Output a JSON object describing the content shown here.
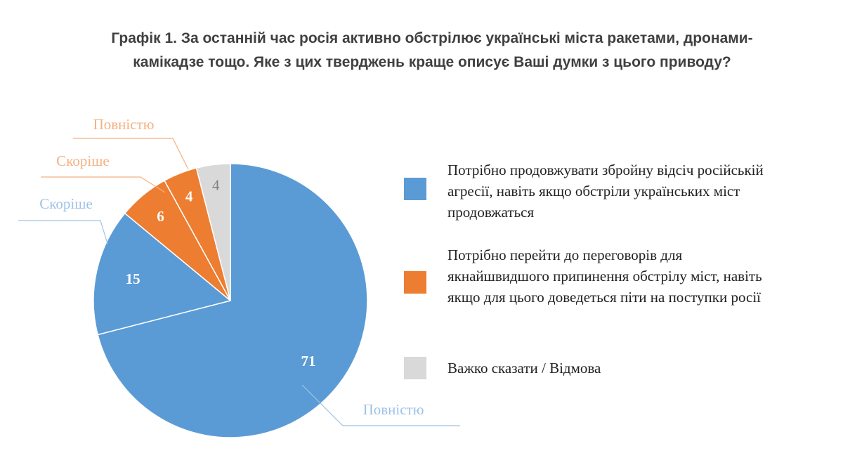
{
  "chart_data": {
    "type": "pie",
    "title_lines": [
      "Графік 1. За останній час росія активно обстрілює українські міста ракетами, дронами-",
      "камікадзе тощо. Яке з цих тверджень краще описує Ваші думки з цього приводу?"
    ],
    "slices": [
      {
        "value": 71,
        "label": "71",
        "callout": "Повністю",
        "group": 0
      },
      {
        "value": 15,
        "label": "15",
        "callout": "Скоріше",
        "group": 0
      },
      {
        "value": 6,
        "label": "6",
        "callout": "Скоріше",
        "group": 1
      },
      {
        "value": 4,
        "label": "4",
        "callout": "Повністю",
        "group": 1
      },
      {
        "value": 4,
        "label": "4",
        "callout": "",
        "group": 2
      }
    ],
    "legend": [
      {
        "text": "Потрібно продовжувати збройну відсіч російській агресії, навіть якщо обстріли українських міст продовжаться",
        "color": "#5b9bd5"
      },
      {
        "text": "Потрібно перейти до переговорів для якнайшвидшого припинення обстрілу міст, навіть якщо для цього доведеться піти на поступки росії",
        "color": "#ed7d31"
      },
      {
        "text": "Важко сказати / Відмова",
        "color": "#d9d9d9"
      }
    ],
    "colors": {
      "blue": "#5b9bd5",
      "orange": "#ed7d31",
      "gray": "#d9d9d9",
      "label_light_blue": "#9dc3e6",
      "label_light_orange": "#f4b183"
    }
  }
}
